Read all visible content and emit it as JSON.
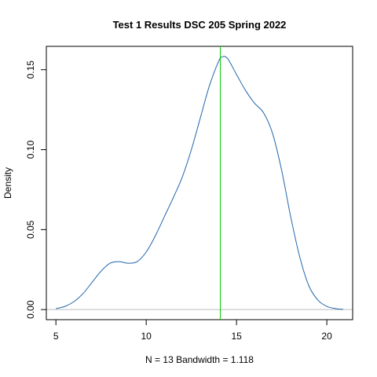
{
  "chart_data": {
    "type": "line",
    "title": "Test 1 Results DSC 205 Spring 2022",
    "xlabel": "N = 13   Bandwidth = 1.118",
    "ylabel": "Density",
    "xlim": [
      4.47,
      21.43
    ],
    "ylim": [
      -0.0063,
      0.1646
    ],
    "x_ticks": [
      5,
      10,
      15,
      20
    ],
    "x_tick_labels": [
      "5",
      "10",
      "15",
      "20"
    ],
    "y_ticks": [
      0,
      0.05,
      0.1,
      0.15
    ],
    "y_tick_labels": [
      "0.00",
      "0.05",
      "0.10",
      "0.15"
    ],
    "grid": false,
    "baseline": 0,
    "series": [
      {
        "color": "#2166ac",
        "x": [
          5.0,
          5.5,
          6.0,
          6.5,
          7.0,
          7.5,
          8.0,
          8.5,
          9.0,
          9.5,
          10.0,
          10.5,
          11.0,
          11.5,
          12.0,
          12.5,
          13.0,
          13.5,
          14.0,
          14.2,
          14.5,
          15.0,
          15.5,
          16.0,
          16.5,
          17.0,
          17.5,
          18.0,
          18.5,
          19.0,
          19.5,
          20.0,
          20.5,
          20.9
        ],
        "y": [
          0.0006,
          0.002,
          0.005,
          0.01,
          0.017,
          0.024,
          0.029,
          0.03,
          0.029,
          0.03,
          0.036,
          0.046,
          0.058,
          0.07,
          0.083,
          0.1,
          0.12,
          0.14,
          0.155,
          0.158,
          0.157,
          0.147,
          0.137,
          0.129,
          0.123,
          0.11,
          0.087,
          0.058,
          0.033,
          0.015,
          0.006,
          0.002,
          0.0006,
          0.0002
        ]
      }
    ],
    "reference_line": {
      "x": 14.1,
      "color": "#00cc00"
    }
  }
}
